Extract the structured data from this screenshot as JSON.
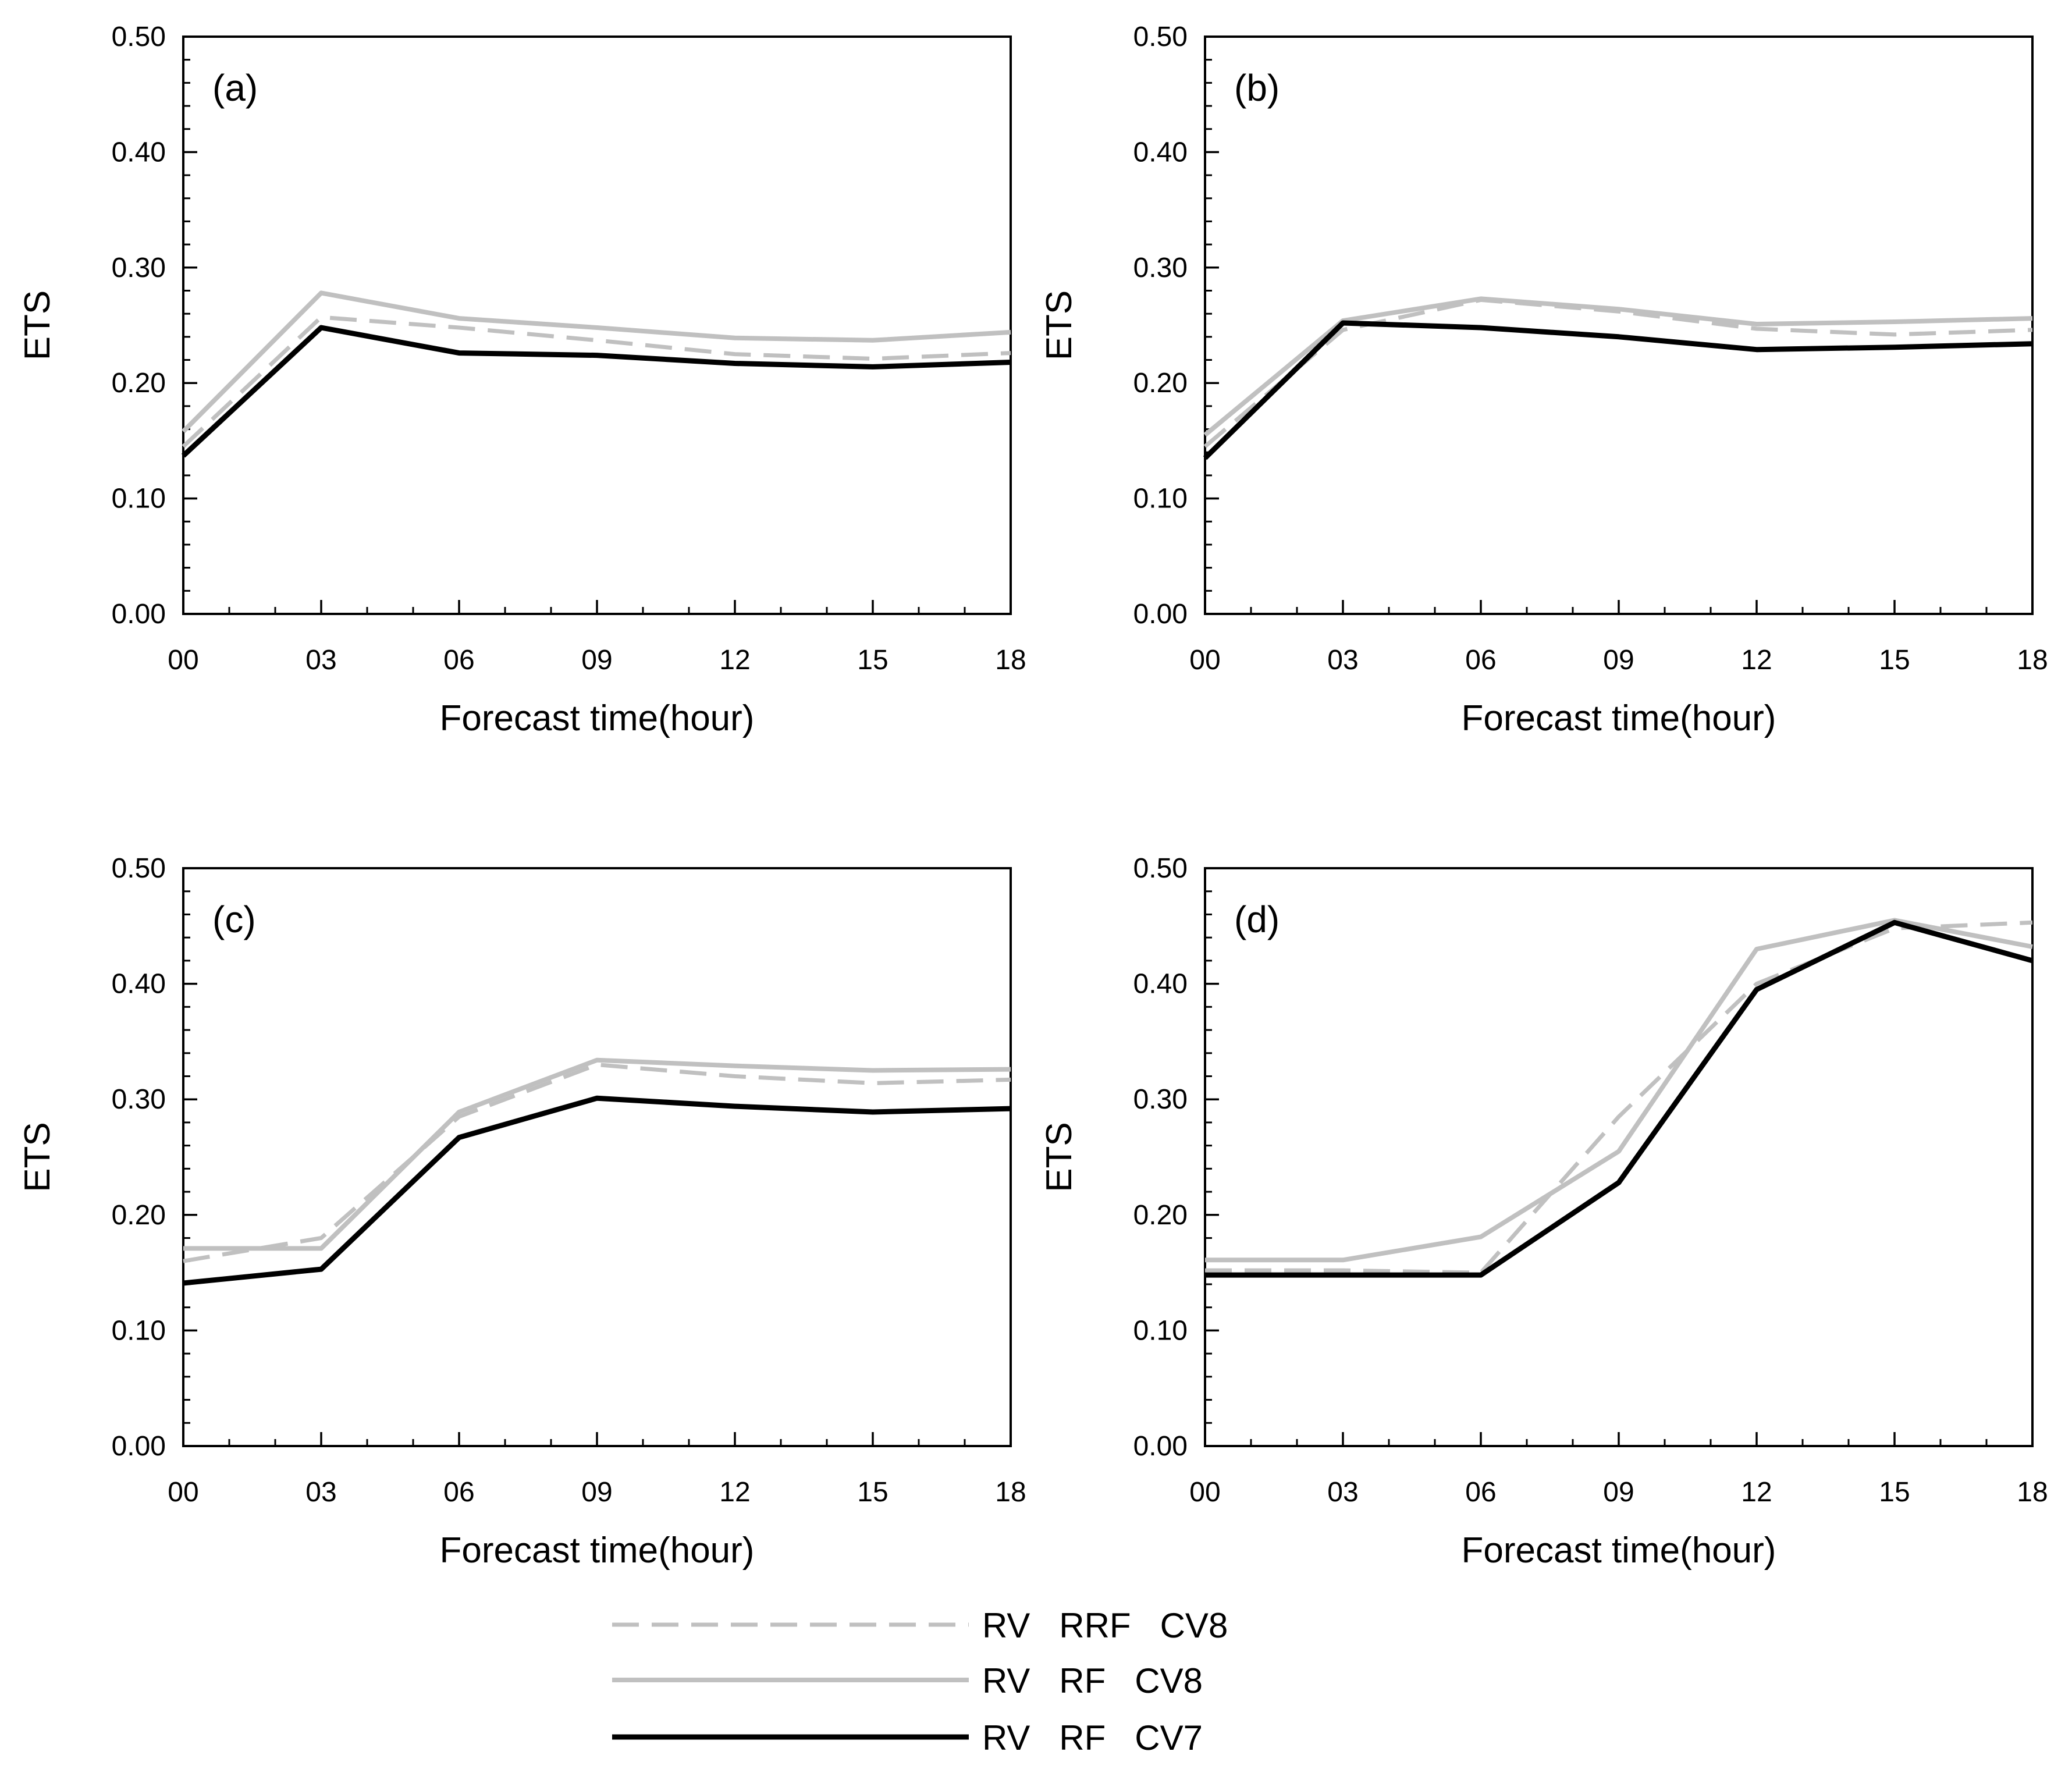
{
  "figure": {
    "legend_position": "bottom-center"
  },
  "series_styles": [
    {
      "name": "RV RRF CV8",
      "color": "#c0c0c0",
      "dash": "dashed"
    },
    {
      "name": "RV RF CV8",
      "color": "#c0c0c0",
      "dash": "solid"
    },
    {
      "name": "RV RF CV7",
      "color": "#000000",
      "dash": "solid"
    }
  ],
  "legend": [
    {
      "id": "rrf-cv8",
      "label": "RV   RRF   CV8"
    },
    {
      "id": "rf-cv8",
      "label": "RV   RF   CV8"
    },
    {
      "id": "rf-cv7",
      "label": "RV   RF   CV7"
    }
  ],
  "chart_data": [
    {
      "type": "line",
      "panel_label": "(a)",
      "xlabel": "Forecast time(hour)",
      "ylabel": "ETS",
      "x": [
        "00",
        "03",
        "06",
        "09",
        "12",
        "15",
        "18"
      ],
      "xlim": [
        0,
        18
      ],
      "ylim": [
        0,
        0.5
      ],
      "yticks": [
        "0.00",
        "0.10",
        "0.20",
        "0.30",
        "0.40",
        "0.50"
      ],
      "grid": false,
      "series": [
        {
          "name": "RV RRF CV8",
          "values": [
            0.145,
            0.257,
            0.248,
            0.237,
            0.225,
            0.221,
            0.226
          ]
        },
        {
          "name": "RV RF CV8",
          "values": [
            0.158,
            0.278,
            0.256,
            0.248,
            0.239,
            0.237,
            0.244
          ]
        },
        {
          "name": "RV RF CV7",
          "values": [
            0.137,
            0.248,
            0.226,
            0.224,
            0.217,
            0.214,
            0.218
          ]
        }
      ]
    },
    {
      "type": "line",
      "panel_label": "(b)",
      "xlabel": "Forecast time(hour)",
      "ylabel": "ETS",
      "x": [
        "00",
        "03",
        "06",
        "09",
        "12",
        "15",
        "18"
      ],
      "xlim": [
        0,
        18
      ],
      "ylim": [
        0,
        0.5
      ],
      "yticks": [
        "0.00",
        "0.10",
        "0.20",
        "0.30",
        "0.40",
        "0.50"
      ],
      "grid": false,
      "series": [
        {
          "name": "RV RRF CV8",
          "values": [
            0.145,
            0.246,
            0.272,
            0.262,
            0.247,
            0.242,
            0.246
          ]
        },
        {
          "name": "RV RF CV8",
          "values": [
            0.155,
            0.254,
            0.273,
            0.264,
            0.251,
            0.253,
            0.256
          ]
        },
        {
          "name": "RV RF CV7",
          "values": [
            0.135,
            0.252,
            0.248,
            0.24,
            0.229,
            0.231,
            0.234
          ]
        }
      ]
    },
    {
      "type": "line",
      "panel_label": "(c)",
      "xlabel": "Forecast time(hour)",
      "ylabel": "ETS",
      "x": [
        "00",
        "03",
        "06",
        "09",
        "12",
        "15",
        "18"
      ],
      "xlim": [
        0,
        18
      ],
      "ylim": [
        0,
        0.5
      ],
      "yticks": [
        "0.00",
        "0.10",
        "0.20",
        "0.30",
        "0.40",
        "0.50"
      ],
      "grid": false,
      "series": [
        {
          "name": "RV RRF CV8",
          "values": [
            0.16,
            0.18,
            0.285,
            0.33,
            0.32,
            0.314,
            0.317
          ]
        },
        {
          "name": "RV RF CV8",
          "values": [
            0.171,
            0.171,
            0.289,
            0.334,
            0.329,
            0.325,
            0.326
          ]
        },
        {
          "name": "RV RF CV7",
          "values": [
            0.141,
            0.153,
            0.267,
            0.301,
            0.294,
            0.289,
            0.292
          ]
        }
      ]
    },
    {
      "type": "line",
      "panel_label": "(d)",
      "xlabel": "Forecast time(hour)",
      "ylabel": "ETS",
      "x": [
        "00",
        "03",
        "06",
        "09",
        "12",
        "15",
        "18"
      ],
      "xlim": [
        0,
        18
      ],
      "ylim": [
        0,
        0.5
      ],
      "yticks": [
        "0.00",
        "0.10",
        "0.20",
        "0.30",
        "0.40",
        "0.50"
      ],
      "grid": false,
      "series": [
        {
          "name": "RV RRF CV8",
          "values": [
            0.152,
            0.152,
            0.15,
            0.285,
            0.4,
            0.448,
            0.453
          ]
        },
        {
          "name": "RV RF CV8",
          "values": [
            0.161,
            0.161,
            0.181,
            0.255,
            0.43,
            0.455,
            0.432
          ]
        },
        {
          "name": "RV RF CV7",
          "values": [
            0.148,
            0.148,
            0.148,
            0.228,
            0.395,
            0.453,
            0.42
          ]
        }
      ]
    }
  ]
}
